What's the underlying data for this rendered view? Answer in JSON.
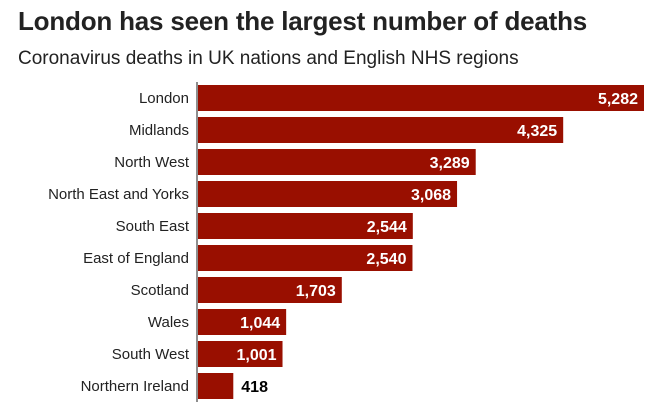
{
  "title": "London has seen the largest number of deaths",
  "subtitle": "Coronavirus deaths in UK nations and English NHS regions",
  "colors": {
    "bar": "#990f00",
    "axis": "#444444",
    "inside_label": "#ffffff",
    "outside_label": "#000000"
  },
  "chart_data": {
    "type": "bar",
    "orientation": "horizontal",
    "title": "London has seen the largest number of deaths",
    "subtitle": "Coronavirus deaths in UK nations and English NHS regions",
    "categories": [
      "London",
      "Midlands",
      "North West",
      "North East and Yorks",
      "South East",
      "East of England",
      "Scotland",
      "Wales",
      "South West",
      "Northern Ireland"
    ],
    "values": [
      5282,
      4325,
      3289,
      3068,
      2544,
      2540,
      1703,
      1044,
      1001,
      418
    ],
    "value_labels": [
      "5,282",
      "4,325",
      "3,289",
      "3,068",
      "2,544",
      "2,540",
      "1,703",
      "1,044",
      "1,001",
      "418"
    ],
    "xlabel": "",
    "ylabel": "",
    "grid": false,
    "legend": "none"
  }
}
